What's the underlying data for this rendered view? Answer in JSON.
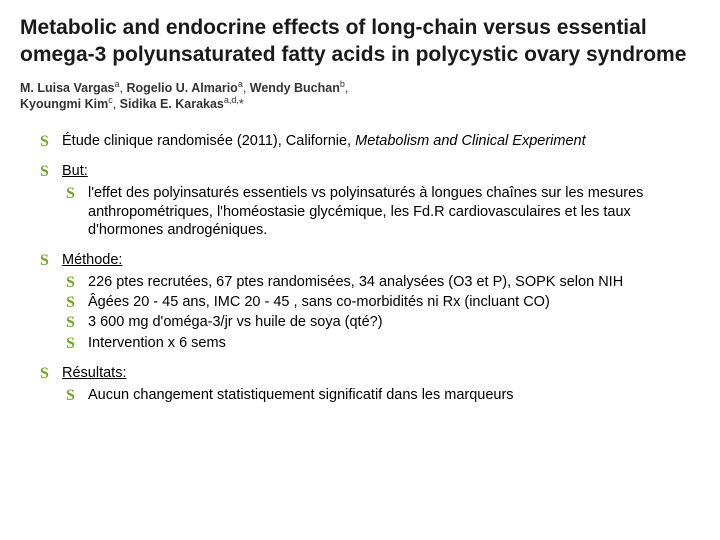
{
  "colors": {
    "bullet": "#6fa81f",
    "title": "#1a1a1a",
    "body": "#000000",
    "author_text": "#333333",
    "background": "#ffffff"
  },
  "header": {
    "title": "Metabolic and endocrine effects of long-chain versus essential omega-3 polyunsaturated fatty acids in polycystic ovary syndrome",
    "authors_html": "M. Luisa Vargasᵃ, Rogelio U. Almarioᵃ, Wendy Buchanᵇ, Kyoungmi Kimᶜ, Sidika E. Karakasᵃ,ᵈ,*"
  },
  "items": [
    {
      "level": 1,
      "text": "Étude clinique randomisée (2011), Californie, ",
      "italic_tail": "Metabolism and Clinical Experiment"
    },
    {
      "level": 1,
      "underline": true,
      "text": "But:"
    },
    {
      "level": 2,
      "text": "l'effet des polyinsaturés essentiels vs polyinsaturés à longues chaînes sur les mesures anthropométriques, l'homéostasie glycémique, les Fd.R cardiovasculaires et les taux d'hormones androgéniques."
    },
    {
      "level": 1,
      "underline": true,
      "text": "Méthode:"
    },
    {
      "level": 2,
      "text": "226 ptes recrutées, 67 ptes randomisées, 34 analysées (O3 et P), SOPK selon NIH"
    },
    {
      "level": 2,
      "text": "Âgées 20 - 45 ans, IMC 20 - 45 , sans co-morbidités ni Rx (incluant CO)"
    },
    {
      "level": 2,
      "text": "3 600 mg d'oméga-3/jr vs huile de soya (qté?)"
    },
    {
      "level": 2,
      "text": "Intervention x 6 sems"
    },
    {
      "level": 1,
      "underline": true,
      "text": "Résultats:"
    },
    {
      "level": 2,
      "text": "Aucun changement statistiquement significatif dans les marqueurs"
    }
  ]
}
